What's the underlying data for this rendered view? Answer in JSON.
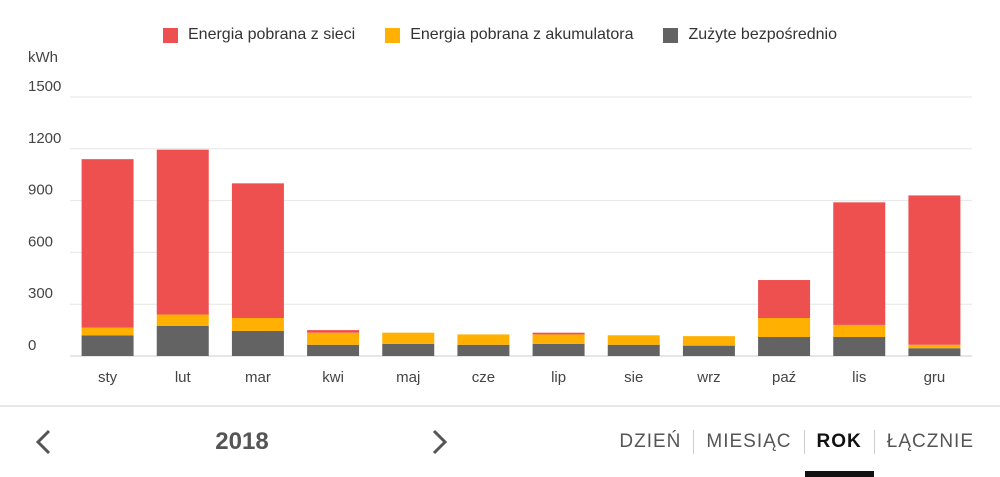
{
  "chart_data": {
    "type": "bar",
    "stacked": true,
    "y_unit": "kWh",
    "ylim": [
      0,
      1500
    ],
    "y_ticks": [
      0,
      300,
      600,
      900,
      1200,
      1500
    ],
    "categories": [
      "sty",
      "lut",
      "mar",
      "kwi",
      "maj",
      "cze",
      "lip",
      "sie",
      "wrz",
      "paź",
      "lis",
      "gru"
    ],
    "series": [
      {
        "name": "Zużyte bezpośrednio",
        "color": "#636363",
        "values": [
          120,
          175,
          145,
          65,
          70,
          65,
          70,
          65,
          60,
          110,
          110,
          45
        ]
      },
      {
        "name": "Energia pobrana z akumulatora",
        "color": "#ffb000",
        "values": [
          45,
          65,
          75,
          70,
          65,
          60,
          55,
          55,
          55,
          110,
          70,
          20
        ]
      },
      {
        "name": "Energia pobrana z sieci",
        "color": "#ee5050",
        "values": [
          975,
          955,
          780,
          15,
          0,
          0,
          10,
          0,
          0,
          220,
          710,
          865
        ]
      }
    ],
    "legend_position": "top-center",
    "grid": true
  },
  "legend": {
    "items": [
      {
        "label": "Energia pobrana z sieci",
        "color": "#ee5050"
      },
      {
        "label": "Energia pobrana z akumulatora",
        "color": "#ffb000"
      },
      {
        "label": "Zużyte bezpośrednio",
        "color": "#636363"
      }
    ]
  },
  "nav": {
    "year": "2018",
    "prev_icon": "chevron-left-icon",
    "next_icon": "chevron-right-icon",
    "tabs": [
      {
        "label": "DZIEŃ",
        "active": false
      },
      {
        "label": "MIESIĄC",
        "active": false
      },
      {
        "label": "ROK",
        "active": true
      },
      {
        "label": "ŁĄCZNIE",
        "active": false
      }
    ]
  }
}
